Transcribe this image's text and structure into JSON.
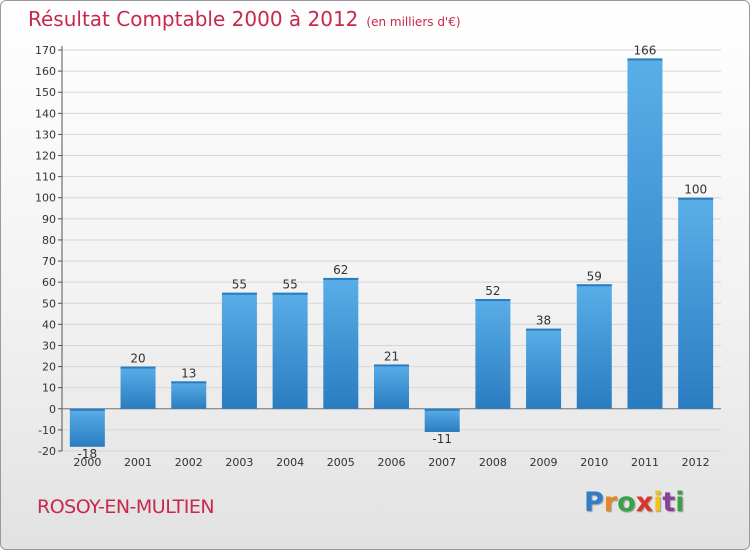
{
  "header": {
    "title": "Résultat Comptable 2000 à 2012",
    "subtitle": "(en milliers d'€)"
  },
  "footer": {
    "place": "ROSOY-EN-MULTIEN",
    "logo": [
      "P",
      "r",
      "o",
      "x",
      "i",
      "t",
      "i"
    ]
  },
  "colors": {
    "accent": "#c8284a",
    "bar_top": "#5aaee8",
    "bar_bottom": "#2a7cc0"
  },
  "chart_data": {
    "type": "bar",
    "title": "Résultat Comptable 2000 à 2012",
    "subtitle": "(en milliers d'€)",
    "categories": [
      "2000",
      "2001",
      "2002",
      "2003",
      "2004",
      "2005",
      "2006",
      "2007",
      "2008",
      "2009",
      "2010",
      "2011",
      "2012"
    ],
    "values": [
      -18,
      20,
      13,
      55,
      55,
      62,
      21,
      -11,
      52,
      38,
      59,
      166,
      100
    ],
    "ylim": [
      -20,
      170
    ],
    "yticks": [
      -20,
      -10,
      0,
      10,
      20,
      30,
      40,
      50,
      60,
      70,
      80,
      90,
      100,
      110,
      120,
      130,
      140,
      150,
      160,
      170
    ],
    "grid": true,
    "legend": "none"
  }
}
